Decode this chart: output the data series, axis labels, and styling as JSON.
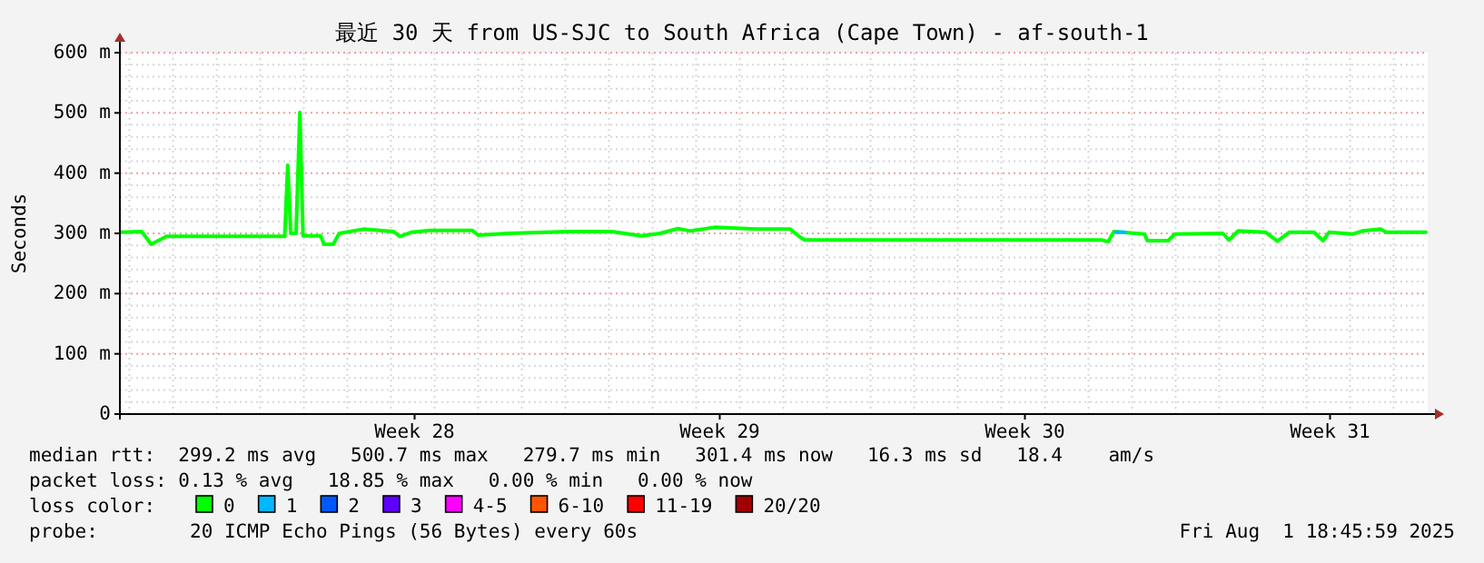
{
  "chart_data": {
    "type": "line",
    "title": "最近 30 天 from US-SJC to South Africa (Cape Town) - af-south-1",
    "ylabel": "Seconds",
    "xlim": [
      "2025-07-02T18:45",
      "2025-08-01T18:45"
    ],
    "xticks": [
      {
        "value": "2025-07-09T13:00",
        "label": "Week 28"
      },
      {
        "value": "2025-07-16T13:00",
        "label": "Week 29"
      },
      {
        "value": "2025-07-23T13:00",
        "label": "Week 30"
      },
      {
        "value": "2025-07-30T13:00",
        "label": "Week 31"
      }
    ],
    "ylim": [
      0,
      600
    ],
    "yticks": [
      {
        "value": 0,
        "label": "0"
      },
      {
        "value": 100,
        "label": "100 m"
      },
      {
        "value": 200,
        "label": "200 m"
      },
      {
        "value": 300,
        "label": "300 m"
      },
      {
        "value": 400,
        "label": "400 m"
      },
      {
        "value": 500,
        "label": "500 m"
      },
      {
        "value": 600,
        "label": "600 m"
      }
    ],
    "grid": true,
    "legend": "bottom",
    "legend_title": "loss color:",
    "line_style": "solid",
    "series": [
      {
        "name": "0",
        "color": "#00ff00",
        "x": [
          "2025-07-02T19:30",
          "2025-07-03T06:45",
          "2025-07-03T12:00",
          "2025-07-03T20:25",
          "2025-07-06T13:30",
          "2025-07-06T15:10",
          "2025-07-06T16:50",
          "2025-07-06T19:45",
          "2025-07-06T21:50",
          "2025-07-06T23:35",
          "2025-07-07T09:20",
          "2025-07-07T11:05",
          "2025-07-07T16:10",
          "2025-07-07T19:30",
          "2025-07-08T08:40",
          "2025-07-09T01:30",
          "2025-07-09T04:50",
          "2025-07-09T11:30",
          "2025-07-09T21:20",
          "2025-07-10T20:40",
          "2025-07-11T00:00",
          "2025-07-11T16:45",
          "2025-07-13T02:00",
          "2025-07-14T01:30",
          "2025-07-14T18:00",
          "2025-07-15T04:10",
          "2025-07-15T14:00",
          "2025-07-15T20:40",
          "2025-07-16T10:10",
          "2025-07-17T09:20",
          "2025-07-18T03:50",
          "2025-07-18T08:40",
          "2025-07-18T11:45",
          "2025-07-25T07:30",
          "2025-07-25T10:50",
          "2025-07-25T14:00",
          "2025-07-26T06:45",
          "2025-07-26T08:25",
          "2025-07-26T19:55",
          "2025-07-26T23:35",
          "2025-07-28T02:00",
          "2025-07-28T05:20",
          "2025-07-28T10:20",
          "2025-07-29T01:30",
          "2025-07-29T08:00",
          "2025-07-29T14:40",
          "2025-07-30T04:10",
          "2025-07-30T09:10",
          "2025-07-30T12:30",
          "2025-07-31T01:45",
          "2025-07-31T06:45",
          "2025-07-31T16:50",
          "2025-07-31T19:55",
          "2025-08-01T17:45"
        ],
        "values": [
          302,
          303,
          282,
          295,
          295,
          413,
          300,
          300,
          501,
          296,
          296,
          282,
          282,
          300,
          307,
          303,
          295,
          302,
          305,
          305,
          297,
          300,
          303,
          303,
          296,
          300,
          308,
          304,
          310,
          307,
          307,
          295,
          289,
          289,
          286,
          303,
          299,
          288,
          288,
          299,
          300,
          289,
          304,
          302,
          287,
          302,
          302,
          288,
          302,
          299,
          304,
          307,
          302,
          302
        ]
      },
      {
        "name": "1",
        "color": "#00b8ff",
        "x": [
          "2025-07-25T15:00",
          "2025-07-25T20:00"
        ],
        "values": [
          302,
          302
        ]
      },
      {
        "name": "2",
        "color": "#0059ff"
      },
      {
        "name": "3",
        "color": "#5e00ff"
      },
      {
        "name": "4-5",
        "color": "#ff00ff"
      },
      {
        "name": "6-10",
        "color": "#ff5500"
      },
      {
        "name": "11-19",
        "color": "#ff0000"
      },
      {
        "name": "20/20",
        "color": "#a10000"
      }
    ],
    "annotations": [
      "median rtt:  299.2 ms avg   500.7 ms max   279.7 ms min   301.4 ms now   16.3 ms sd   18.4    am/s",
      "packet loss: 0.13 % avg   18.85 % max   0.00 % min   0.00 % now",
      "probe:        20 ICMP Echo Pings (56 Bytes) every 60s",
      "Fri Aug  1 18:45:59 2025"
    ]
  }
}
